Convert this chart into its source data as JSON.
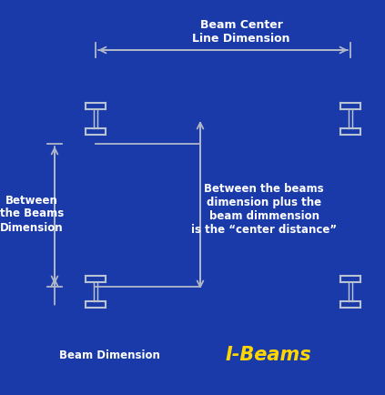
{
  "bg_color": "#1a3aaa",
  "arrow_color": "#b0b8c8",
  "line_color": "#b0b8c8",
  "text_color_white": "#ffffff",
  "text_color_yellow": "#ffd700",
  "title": "I-Beams",
  "label_beam_center": "Beam Center\nLine Dimension",
  "label_between_beams_left": "Between\nthe Beams\nDimension",
  "label_between_beams_center": "Between the beams\ndimension plus the\nbeam dimmension\nis the “center distance”",
  "label_beam_dim": "Beam Dimension",
  "ibeam_color": "#b8c4d4",
  "figsize": [
    4.23,
    4.34
  ],
  "dpi": 100,
  "xlim": [
    0,
    423
  ],
  "ylim": [
    0,
    434
  ]
}
